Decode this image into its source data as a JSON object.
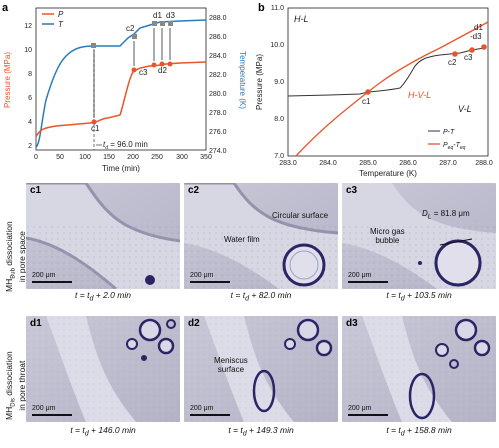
{
  "panel_a": {
    "letter": "a",
    "legend": {
      "p": "P",
      "t": "T"
    },
    "ylabel_left": "Pressure (MPa)",
    "ylabel_right": "Temperature (K)",
    "xlabel": "Time (min)",
    "yticks_left": [
      "2",
      "4",
      "6",
      "8",
      "10",
      "12"
    ],
    "yticks_right": [
      "274.0",
      "276.0",
      "278.0",
      "280.0",
      "282.0",
      "284.0",
      "286.0",
      "288.0"
    ],
    "xticks": [
      "0",
      "50",
      "100",
      "150",
      "200",
      "250",
      "300",
      "350"
    ],
    "annotation_td": "t",
    "annotation_td_sub": "d",
    "annotation_td_val": " = 96.0 min",
    "labels": {
      "c1": "c1",
      "c2": "c2",
      "c3": "c3",
      "d1": "d1",
      "d2": "d2",
      "d3": "d3"
    },
    "colors": {
      "pressure": "#e8552a",
      "temperature": "#2c7bb6"
    }
  },
  "panel_b": {
    "letter": "b",
    "ylabel": "Pressure (MPa)",
    "xlabel": "Temperature (K)",
    "xticks": [
      "283.0",
      "284.0",
      "285.0",
      "286.0",
      "287.0",
      "288.0"
    ],
    "yticks": [
      "7.0",
      "8.0",
      "9.0",
      "10.0",
      "11.0"
    ],
    "region_hl": "H-L",
    "region_hvl": "H-V-L",
    "region_vl": "V-L",
    "labels": {
      "c1": "c1",
      "c2": "c2",
      "c3": "c3",
      "d1": "d1",
      "d3": "-d3"
    },
    "legend": {
      "pt": "P-T",
      "eq_p": "P",
      "eq_sub": "eq",
      "eq_dash": "-T",
      "eq_sub2": "eq"
    }
  },
  "micrographs": [
    {
      "id": "c1",
      "caption_pre": "t = t",
      "caption_sub": "d",
      "caption_post": " + 2.0 min",
      "scale": "200 μm"
    },
    {
      "id": "c2",
      "caption_pre": "t = t",
      "caption_sub": "d",
      "caption_post": " + 82.0 min",
      "scale": "200 μm",
      "notes": [
        "Circular surface",
        "Water film"
      ]
    },
    {
      "id": "c3",
      "caption_pre": "t = t",
      "caption_sub": "d",
      "caption_post": " + 103.5 min",
      "scale": "200 μm",
      "notes": [
        "Micro gas",
        "bubble"
      ],
      "dl": "= 81.8 μm",
      "dl_pre": "D",
      "dl_sub": "L"
    },
    {
      "id": "d1",
      "caption_pre": "t = t",
      "caption_sub": "d",
      "caption_post": " + 146.0 min",
      "scale": "200 μm"
    },
    {
      "id": "d2",
      "caption_pre": "t = t",
      "caption_sub": "d",
      "caption_post": " + 149.3 min",
      "scale": "200 μm",
      "notes": [
        "Meniscus",
        "surface"
      ]
    },
    {
      "id": "d3",
      "caption_pre": "t = t",
      "caption_sub": "d",
      "caption_post": " + 158.8 min",
      "scale": "200 μm"
    }
  ],
  "row_labels": {
    "row1_pre": "MH",
    "row1_sub": "Bub",
    "row1_post": " dissociation",
    "row1_line2": "in pore space",
    "row2_pre": "MH",
    "row2_sub": "Dis",
    "row2_post": " dissociation",
    "row2_line2": "in pore throat"
  }
}
